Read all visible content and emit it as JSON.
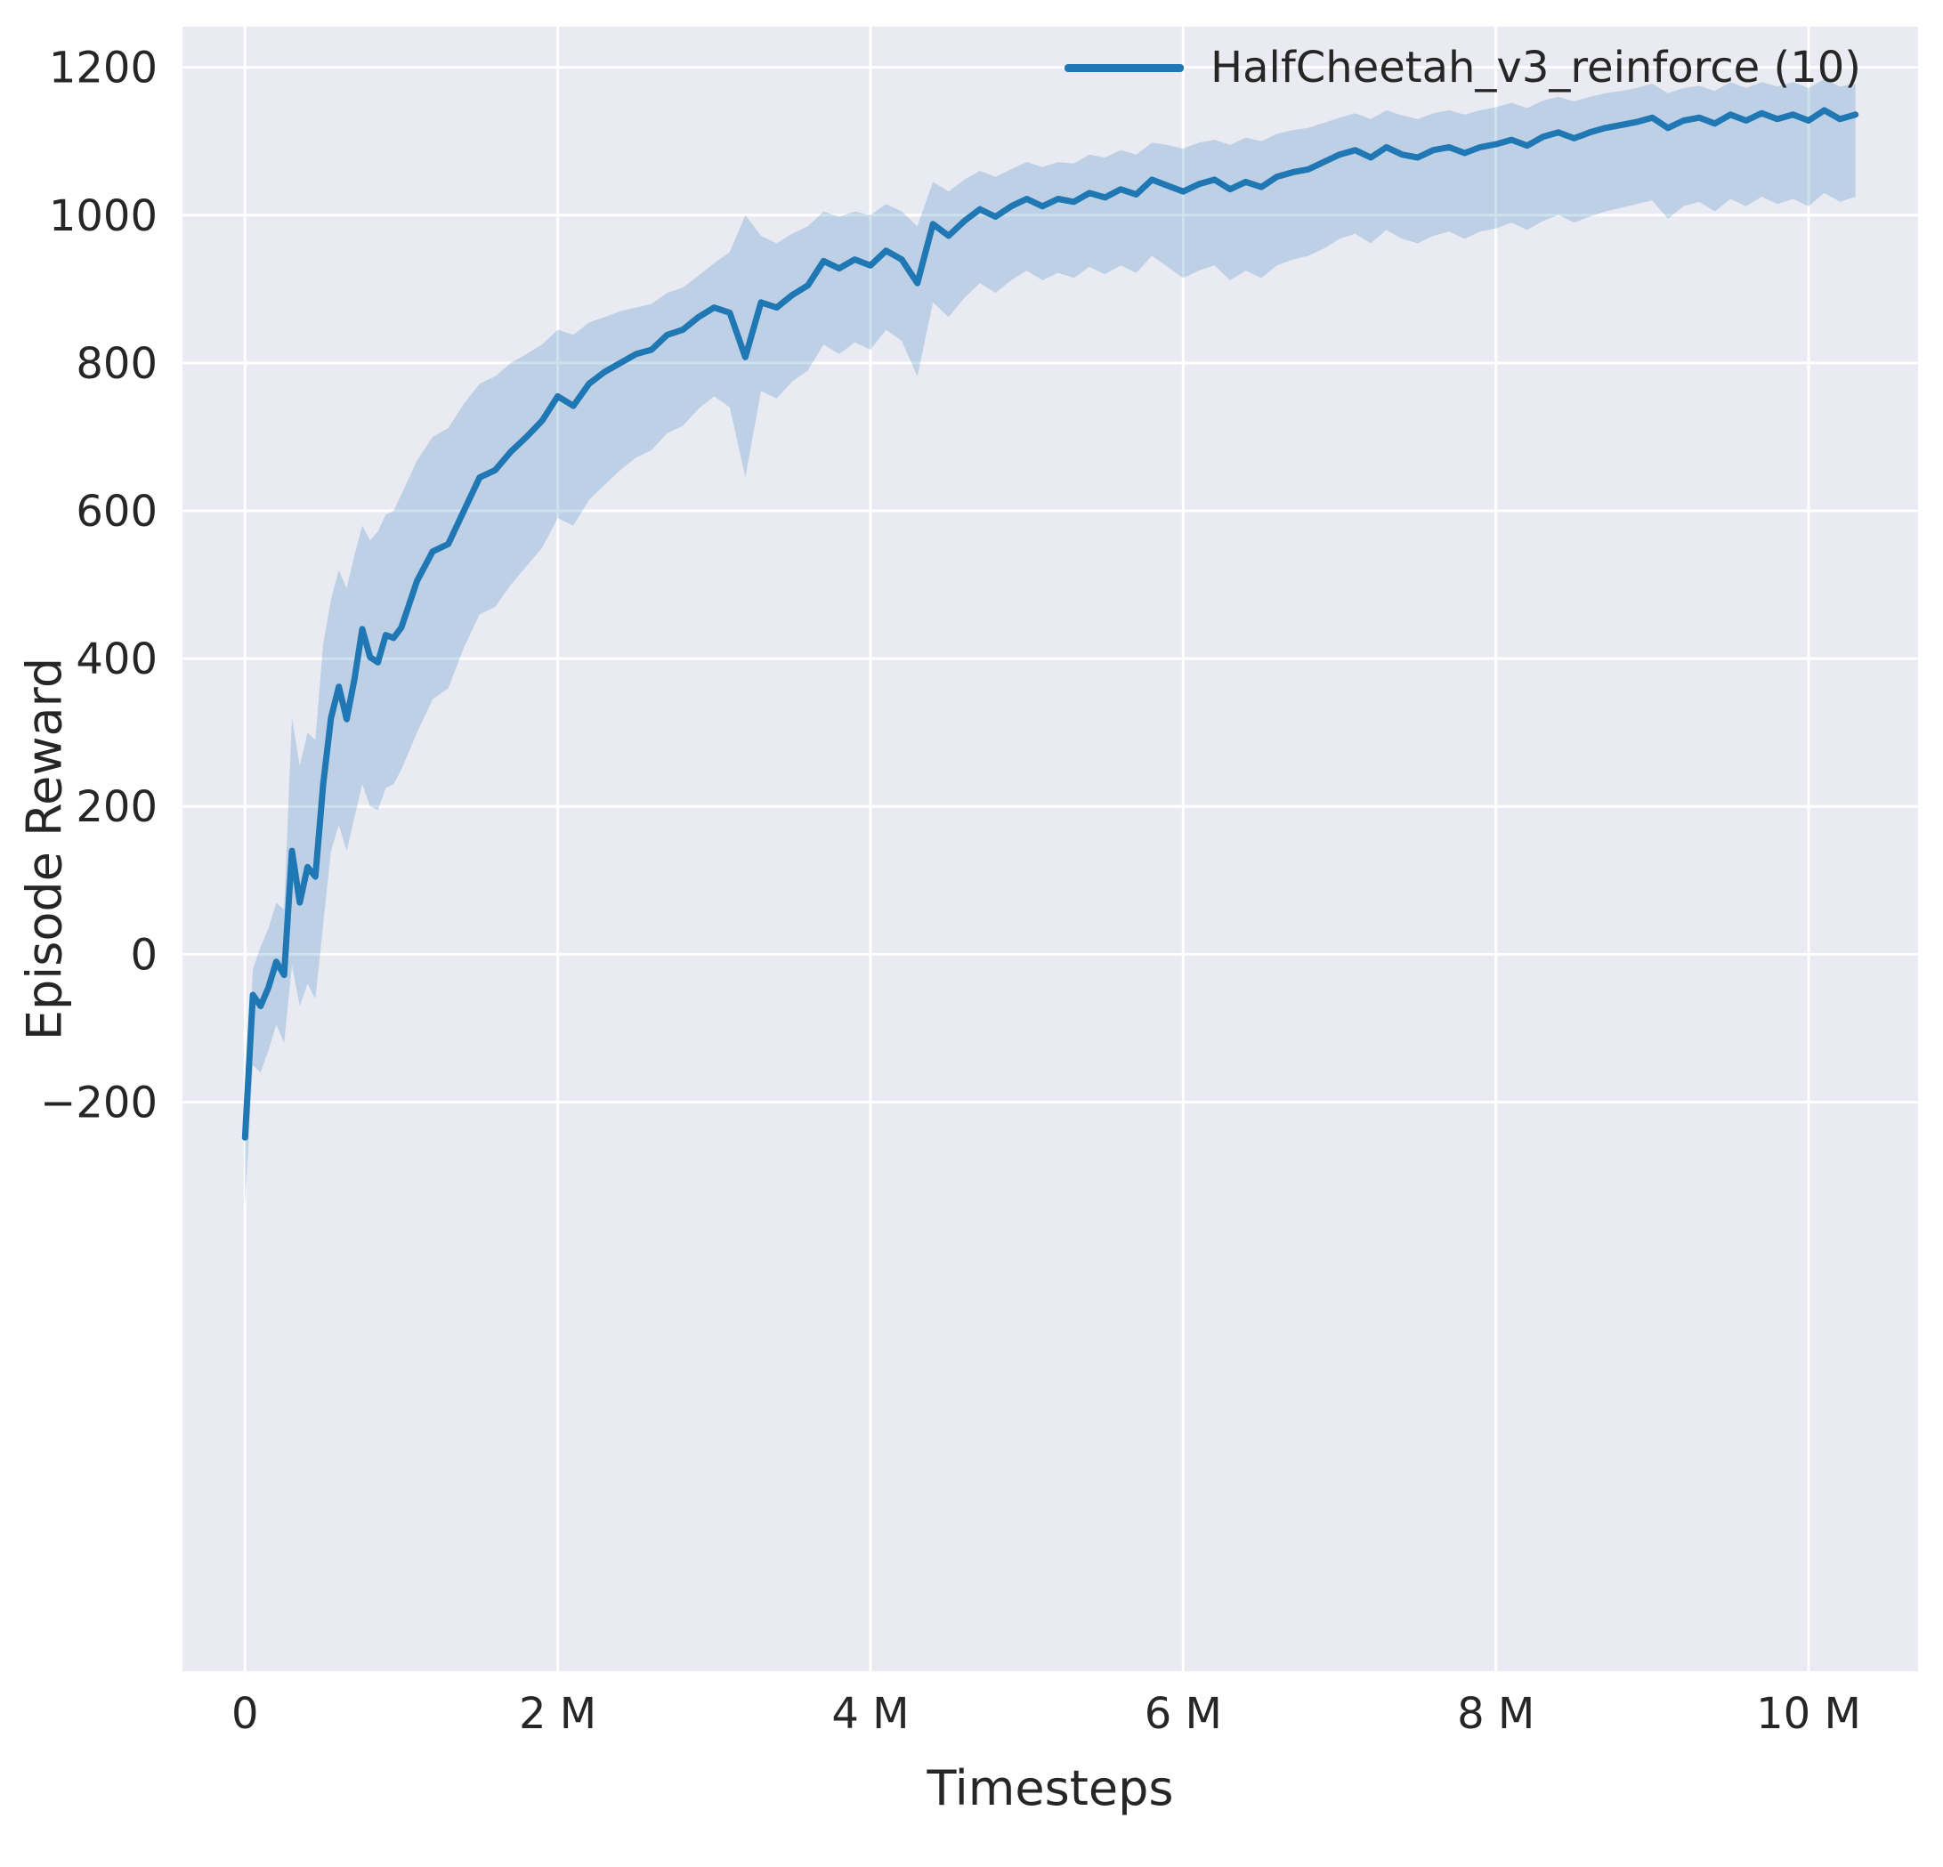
{
  "chart_data": {
    "type": "line",
    "title": "",
    "xlabel": "Timesteps",
    "ylabel": "Episode Reward",
    "xlim_millions": [
      -0.4,
      10.7
    ],
    "ylim": [
      -970,
      1255
    ],
    "grid": true,
    "background": "#eaeaf2",
    "grid_color": "#ffffff",
    "text_color": "#262626",
    "legend_position": "upper right",
    "x_ticks": [
      {
        "value": 0,
        "label": "0"
      },
      {
        "value": 2,
        "label": "2 M"
      },
      {
        "value": 4,
        "label": "4 M"
      },
      {
        "value": 6,
        "label": "6 M"
      },
      {
        "value": 8,
        "label": "8 M"
      },
      {
        "value": 10,
        "label": "10 M"
      }
    ],
    "y_ticks": [
      {
        "value": -200,
        "label": "−200"
      },
      {
        "value": 0,
        "label": "0"
      },
      {
        "value": 200,
        "label": "200"
      },
      {
        "value": 400,
        "label": "400"
      },
      {
        "value": 600,
        "label": "600"
      },
      {
        "value": 800,
        "label": "800"
      },
      {
        "value": 1000,
        "label": "1000"
      },
      {
        "value": 1200,
        "label": "1200"
      }
    ],
    "series": [
      {
        "name": "HalfCheetah_v3_reinforce (10)",
        "color": "#1f77b4",
        "band_opacity": 0.22,
        "x_millions": [
          0,
          0.05,
          0.1,
          0.15,
          0.2,
          0.25,
          0.3,
          0.35,
          0.4,
          0.45,
          0.5,
          0.55,
          0.6,
          0.65,
          0.7,
          0.75,
          0.8,
          0.85,
          0.9,
          0.95,
          1.0,
          1.1,
          1.2,
          1.3,
          1.4,
          1.5,
          1.6,
          1.7,
          1.8,
          1.9,
          2.0,
          2.1,
          2.2,
          2.3,
          2.4,
          2.5,
          2.6,
          2.7,
          2.8,
          2.9,
          3.0,
          3.1,
          3.2,
          3.3,
          3.4,
          3.5,
          3.6,
          3.7,
          3.8,
          3.9,
          4.0,
          4.1,
          4.2,
          4.3,
          4.4,
          4.5,
          4.6,
          4.7,
          4.8,
          4.9,
          5.0,
          5.1,
          5.2,
          5.3,
          5.4,
          5.5,
          5.6,
          5.7,
          5.8,
          5.9,
          6.0,
          6.1,
          6.2,
          6.3,
          6.4,
          6.5,
          6.6,
          6.7,
          6.8,
          6.9,
          7.0,
          7.1,
          7.2,
          7.3,
          7.4,
          7.5,
          7.6,
          7.7,
          7.8,
          7.9,
          8.0,
          8.1,
          8.2,
          8.3,
          8.4,
          8.5,
          8.6,
          8.7,
          8.8,
          8.9,
          9.0,
          9.1,
          9.2,
          9.3,
          9.4,
          9.5,
          9.6,
          9.7,
          9.8,
          9.9,
          10.0,
          10.1,
          10.2,
          10.3
        ],
        "mean": [
          -248,
          -55,
          -70,
          -45,
          -10,
          -28,
          140,
          70,
          118,
          105,
          230,
          320,
          362,
          318,
          372,
          440,
          402,
          395,
          432,
          428,
          442,
          505,
          545,
          555,
          600,
          645,
          655,
          680,
          700,
          722,
          755,
          742,
          772,
          788,
          800,
          812,
          818,
          838,
          845,
          862,
          875,
          868,
          808,
          882,
          875,
          892,
          905,
          938,
          928,
          940,
          932,
          952,
          940,
          908,
          988,
          972,
          992,
          1008,
          998,
          1012,
          1022,
          1012,
          1022,
          1018,
          1030,
          1024,
          1035,
          1028,
          1048,
          1040,
          1032,
          1042,
          1048,
          1035,
          1045,
          1038,
          1052,
          1058,
          1062,
          1072,
          1082,
          1088,
          1078,
          1092,
          1082,
          1078,
          1088,
          1092,
          1084,
          1092,
          1096,
          1102,
          1094,
          1106,
          1112,
          1104,
          1112,
          1118,
          1122,
          1126,
          1132,
          1118,
          1128,
          1132,
          1124,
          1136,
          1128,
          1138,
          1130,
          1136,
          1128,
          1142,
          1130,
          1136
        ],
        "lower": [
          -340,
          -150,
          -160,
          -130,
          -95,
          -120,
          -15,
          -70,
          -40,
          -60,
          40,
          140,
          175,
          140,
          185,
          230,
          200,
          195,
          225,
          230,
          250,
          300,
          345,
          360,
          415,
          460,
          470,
          500,
          525,
          550,
          590,
          580,
          615,
          635,
          655,
          672,
          682,
          705,
          715,
          738,
          755,
          740,
          645,
          762,
          752,
          775,
          790,
          825,
          812,
          828,
          818,
          845,
          830,
          782,
          882,
          862,
          888,
          908,
          895,
          912,
          925,
          912,
          922,
          915,
          930,
          920,
          932,
          922,
          945,
          930,
          915,
          925,
          932,
          912,
          925,
          915,
          932,
          940,
          945,
          955,
          968,
          975,
          962,
          980,
          968,
          962,
          972,
          978,
          968,
          978,
          982,
          990,
          980,
          992,
          1000,
          990,
          998,
          1005,
          1010,
          1015,
          1020,
          995,
          1012,
          1018,
          1005,
          1022,
          1012,
          1025,
          1015,
          1022,
          1012,
          1030,
          1018,
          1025
        ],
        "upper": [
          -232,
          -20,
          10,
          35,
          70,
          60,
          320,
          255,
          300,
          290,
          420,
          480,
          520,
          495,
          540,
          580,
          560,
          572,
          595,
          600,
          622,
          668,
          700,
          712,
          745,
          772,
          782,
          800,
          812,
          825,
          845,
          838,
          855,
          862,
          870,
          875,
          880,
          895,
          902,
          918,
          935,
          950,
          1000,
          972,
          962,
          975,
          985,
          1005,
          998,
          1005,
          1000,
          1015,
          1005,
          985,
          1045,
          1032,
          1048,
          1060,
          1052,
          1062,
          1072,
          1065,
          1072,
          1070,
          1082,
          1078,
          1088,
          1082,
          1098,
          1095,
          1090,
          1098,
          1102,
          1095,
          1105,
          1100,
          1110,
          1115,
          1118,
          1125,
          1132,
          1138,
          1130,
          1142,
          1135,
          1130,
          1138,
          1142,
          1136,
          1142,
          1146,
          1152,
          1145,
          1155,
          1160,
          1154,
          1160,
          1165,
          1168,
          1172,
          1178,
          1165,
          1172,
          1175,
          1168,
          1180,
          1172,
          1180,
          1174,
          1180,
          1172,
          1184,
          1174,
          1178
        ]
      }
    ]
  }
}
